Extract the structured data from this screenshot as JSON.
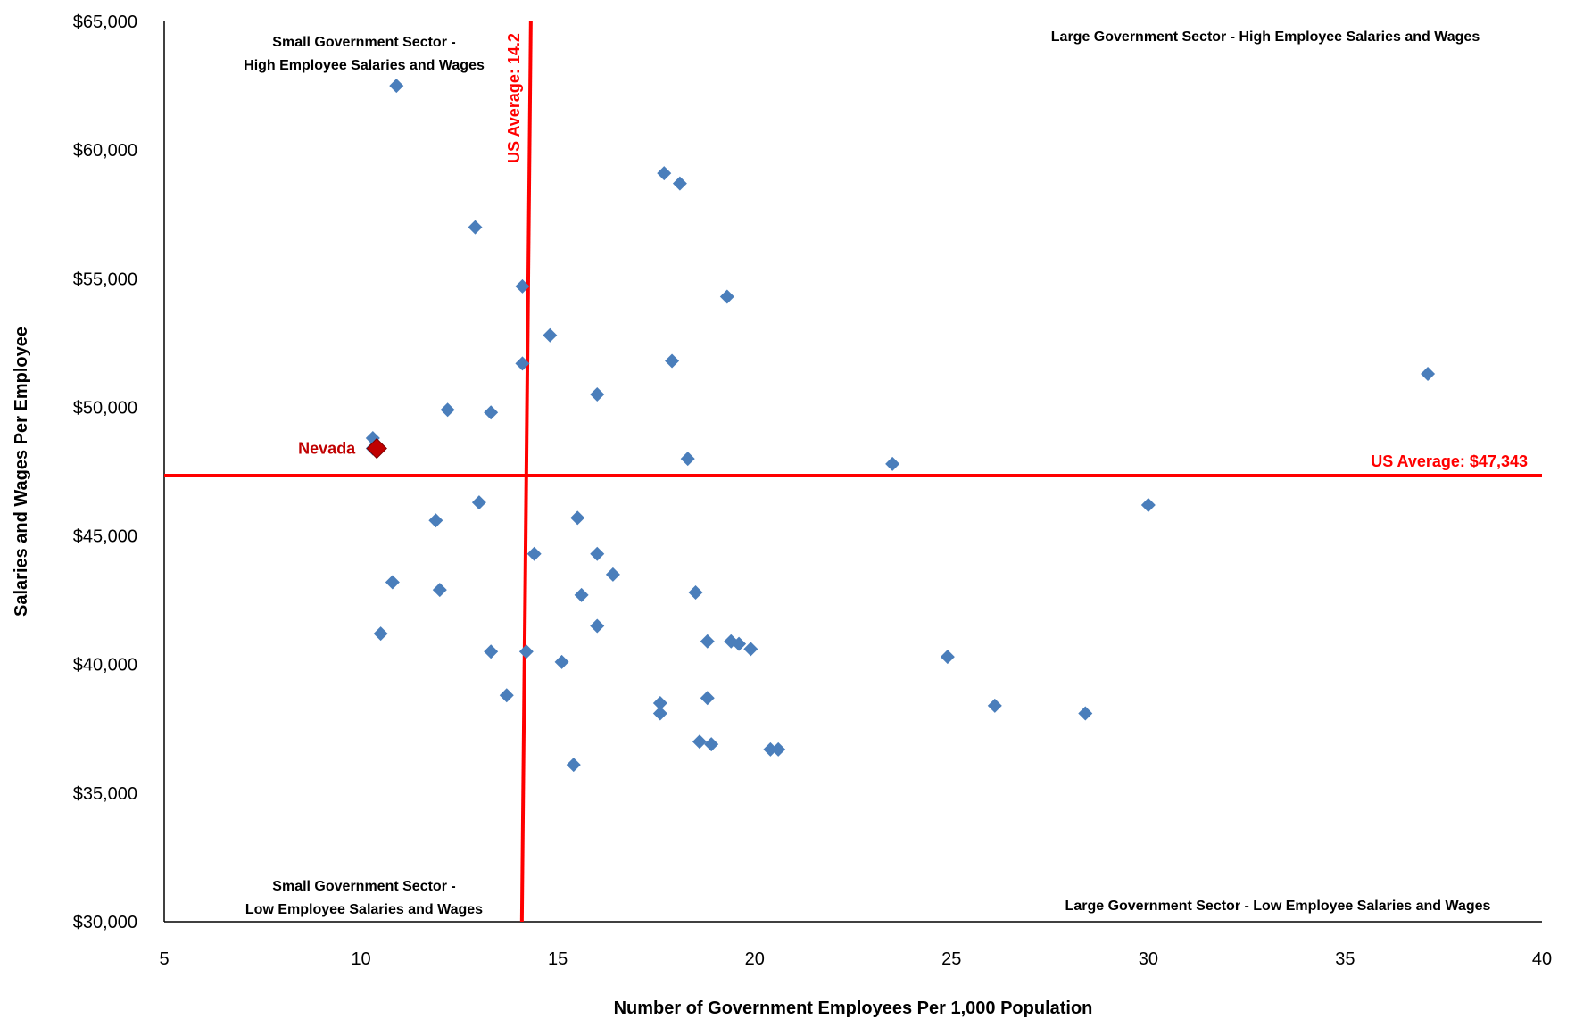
{
  "chart_data": {
    "type": "scatter",
    "xlabel": "Number of Government Employees Per 1,000 Population",
    "ylabel": "Salaries and Wages Per Employee",
    "xlim": [
      5,
      40
    ],
    "ylim": [
      30000,
      65000
    ],
    "x_ticks": [
      "5",
      "10",
      "15",
      "20",
      "25",
      "30",
      "35",
      "40"
    ],
    "y_ticks": [
      "$30,000",
      "$35,000",
      "$40,000",
      "$45,000",
      "$50,000",
      "$55,000",
      "$60,000",
      "$65,000"
    ],
    "grid": false,
    "legend": "none",
    "series": [
      {
        "color": "#4a7ebb",
        "marker": "diamond",
        "points": [
          [
            10.9,
            62500
          ],
          [
            12.9,
            57000
          ],
          [
            14.1,
            54700
          ],
          [
            14.8,
            52800
          ],
          [
            14.1,
            51700
          ],
          [
            16.0,
            50500
          ],
          [
            12.2,
            49900
          ],
          [
            13.3,
            49800
          ],
          [
            10.3,
            48800
          ],
          [
            10.3,
            48400
          ],
          [
            17.7,
            59100
          ],
          [
            18.1,
            58700
          ],
          [
            19.3,
            54300
          ],
          [
            17.9,
            51800
          ],
          [
            18.3,
            48000
          ],
          [
            23.5,
            47800
          ],
          [
            37.1,
            51300
          ],
          [
            30.0,
            46200
          ],
          [
            13.0,
            46300
          ],
          [
            11.9,
            45600
          ],
          [
            15.5,
            45700
          ],
          [
            14.4,
            44300
          ],
          [
            16.0,
            44300
          ],
          [
            16.4,
            43500
          ],
          [
            10.8,
            43200
          ],
          [
            12.0,
            42900
          ],
          [
            15.6,
            42700
          ],
          [
            18.5,
            42800
          ],
          [
            16.0,
            41500
          ],
          [
            10.5,
            41200
          ],
          [
            18.8,
            40900
          ],
          [
            19.4,
            40900
          ],
          [
            19.6,
            40800
          ],
          [
            19.9,
            40600
          ],
          [
            13.3,
            40500
          ],
          [
            14.2,
            40500
          ],
          [
            15.1,
            40100
          ],
          [
            24.9,
            40300
          ],
          [
            13.7,
            38800
          ],
          [
            17.6,
            38500
          ],
          [
            18.8,
            38700
          ],
          [
            17.6,
            38100
          ],
          [
            26.1,
            38400
          ],
          [
            28.4,
            38100
          ],
          [
            18.6,
            37000
          ],
          [
            18.9,
            36900
          ],
          [
            20.4,
            36700
          ],
          [
            20.6,
            36700
          ],
          [
            15.4,
            36100
          ]
        ]
      }
    ],
    "highlight": {
      "label": "Nevada",
      "x": 10.4,
      "y": 48400,
      "color": "#c00000"
    },
    "reference_lines": {
      "color": "#ff0000",
      "vertical": {
        "x": 14.2,
        "label": "US Average: 14.2"
      },
      "horizontal": {
        "y": 47343,
        "label": "US Average: $47,343"
      }
    },
    "quadrant_labels": {
      "top_left": [
        "Small Government Sector -",
        "High Employee Salaries and Wages"
      ],
      "top_right": [
        "Large Government Sector - High Employee Salaries and Wages"
      ],
      "bottom_left": [
        "Small Government Sector -",
        "Low Employee Salaries and Wages"
      ],
      "bottom_right": [
        "Large Government Sector - Low Employee Salaries and Wages"
      ]
    }
  }
}
